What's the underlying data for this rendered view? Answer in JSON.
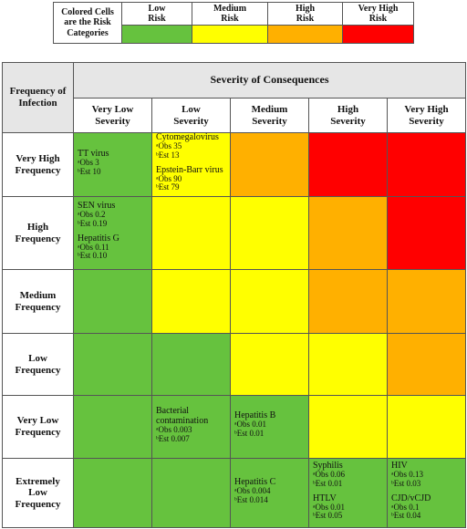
{
  "legend": {
    "label": "Colored Cells\nare the Risk\nCategories",
    "categories": [
      {
        "label": "Low\nRisk",
        "color": "#66c23e"
      },
      {
        "label": "Medium\nRisk",
        "color": "#ffff00"
      },
      {
        "label": "High\nRisk",
        "color": "#ffb000"
      },
      {
        "label": "Very High\nRisk",
        "color": "#ff0000"
      }
    ]
  },
  "table": {
    "corner": "Frequency of\nInfection",
    "header": "Severity of Consequences",
    "columns": [
      "Very Low\nSeverity",
      "Low\nSeverity",
      "Medium\nSeverity",
      "High\nSeverity",
      "Very High\nSeverity"
    ],
    "rows": [
      {
        "label": "Very High\nFrequency",
        "colors": [
          "#66c23e",
          "#ffff00",
          "#ffb000",
          "#ff0000",
          "#ff0000"
        ],
        "cells": [
          [
            [
              "TT virus",
              "ᵃObs 3",
              "ᵇEst 10"
            ]
          ],
          [
            [
              "Cytomegalovirus",
              "ᵃObs 35",
              "ᵇEst 13"
            ],
            [
              "Epstein-Barr virus",
              "ᵃObs 90",
              "ᵇEst 79"
            ]
          ],
          [],
          [],
          []
        ]
      },
      {
        "label": "High\nFrequency",
        "colors": [
          "#66c23e",
          "#ffff00",
          "#ffff00",
          "#ffb000",
          "#ff0000"
        ],
        "cells": [
          [
            [
              "SEN virus",
              "ᵃObs 0.2",
              "ᵇEst 0.19"
            ],
            [
              "Hepatitis G",
              "ᵃObs 0.11",
              "ᵇEst 0.10"
            ]
          ],
          [],
          [],
          [],
          []
        ]
      },
      {
        "label": "Medium\nFrequency",
        "colors": [
          "#66c23e",
          "#ffff00",
          "#ffff00",
          "#ffb000",
          "#ffb000"
        ],
        "cells": [
          [],
          [],
          [],
          [],
          []
        ]
      },
      {
        "label": "Low\nFrequency",
        "colors": [
          "#66c23e",
          "#66c23e",
          "#ffff00",
          "#ffff00",
          "#ffb000"
        ],
        "cells": [
          [],
          [],
          [],
          [],
          []
        ]
      },
      {
        "label": "Very Low\nFrequency",
        "colors": [
          "#66c23e",
          "#66c23e",
          "#66c23e",
          "#ffff00",
          "#ffff00"
        ],
        "cells": [
          [],
          [
            [
              "Bacterial\ncontamination",
              "ᵃObs 0.003",
              "ᵇEst 0.007"
            ]
          ],
          [
            [
              "Hepatitis B",
              "ᵃObs 0.01",
              "ᵇEst 0.01"
            ]
          ],
          [],
          []
        ]
      },
      {
        "label": "Extremely\nLow\nFrequency",
        "colors": [
          "#66c23e",
          "#66c23e",
          "#66c23e",
          "#66c23e",
          "#66c23e"
        ],
        "cells": [
          [],
          [],
          [
            [
              "Hepatitis C",
              "ᵃObs 0.004",
              "ᵇEst 0.014"
            ]
          ],
          [
            [
              "Syphilis",
              "ᵃObs 0.06",
              "ᵇEst 0.01"
            ],
            [
              "HTLV",
              "ᵃObs 0.01",
              "ᵇEst 0.05"
            ]
          ],
          [
            [
              "HIV",
              "ᵃObs 0.13",
              "ᵇEst 0.03"
            ],
            [
              "CJD/vCJD",
              "ᵃObs 0.1",
              "ᵇEst 0.04"
            ]
          ]
        ]
      }
    ]
  }
}
